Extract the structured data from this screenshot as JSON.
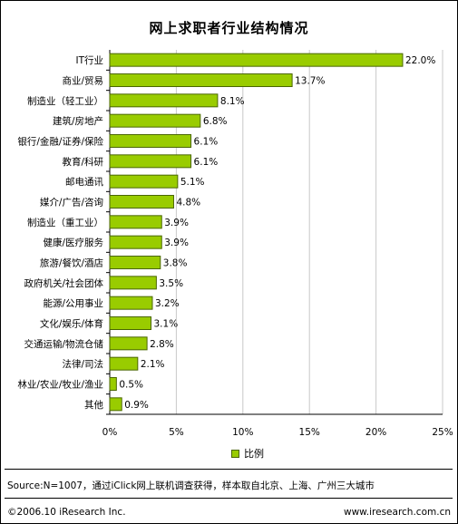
{
  "chart_data": {
    "type": "bar",
    "orientation": "horizontal",
    "title": "网上求职者行业结构情况",
    "categories": [
      "IT行业",
      "商业/贸易",
      "制造业（轻工业）",
      "建筑/房地产",
      "银行/金融/证券/保险",
      "教育/科研",
      "邮电通讯",
      "媒介/广告/咨询",
      "制造业（重工业）",
      "健康/医疗服务",
      "旅游/餐饮/酒店",
      "政府机关/社会团体",
      "能源/公用事业",
      "文化/娱乐/体育",
      "交通运输/物流仓储",
      "法律/司法",
      "林业/农业/牧业/渔业",
      "其他"
    ],
    "series": [
      {
        "name": "比例",
        "values": [
          22.0,
          13.7,
          8.1,
          6.8,
          6.1,
          6.1,
          5.1,
          4.8,
          3.9,
          3.9,
          3.8,
          3.5,
          3.2,
          3.1,
          2.8,
          2.1,
          0.5,
          0.9
        ]
      }
    ],
    "value_labels": [
      "22.0%",
      "13.7%",
      "8.1%",
      "6.8%",
      "6.1%",
      "6.1%",
      "5.1%",
      "4.8%",
      "3.9%",
      "3.9%",
      "3.8%",
      "3.5%",
      "3.2%",
      "3.1%",
      "2.8%",
      "2.1%",
      "0.5%",
      "0.9%"
    ],
    "xlim": [
      0,
      25
    ],
    "xticks": [
      0,
      5,
      10,
      15,
      20,
      25
    ],
    "xtick_labels": [
      "0%",
      "5%",
      "10%",
      "15%",
      "20%",
      "25%"
    ],
    "grid": "vertical",
    "legend_position": "bottom",
    "bar_color": "#99cc00",
    "bar_border_color": "#4a6600"
  },
  "footer": {
    "source": "Source:N=1007，通过iClick网上联机调查获得，样本取自北京、上海、广州三大城市",
    "copyright": "©2006.10 iResearch Inc.",
    "website": "www.iresearch.com.cn"
  }
}
